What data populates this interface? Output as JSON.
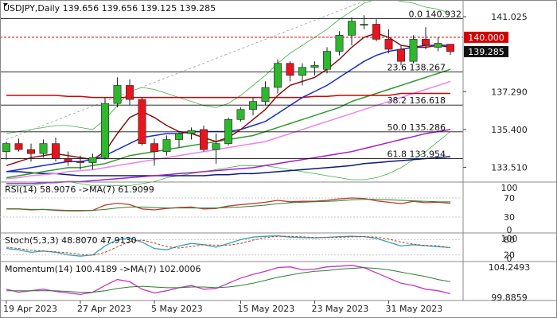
{
  "chart_data": {
    "type": "candlestick",
    "symbol": "USDJPY",
    "timeframe": "Daily",
    "header_ohlc": [
      "139.656",
      "139.656",
      "139.125",
      "139.285"
    ],
    "price_ticks": [
      "141.025",
      "137.290",
      "135.400",
      "133.510"
    ],
    "current_price": "139.285",
    "fib_levels": [
      {
        "label": "0.0 140.932",
        "value": 140.932
      },
      {
        "label": "23.6 138.267",
        "value": 138.267
      },
      {
        "label": "38.2 136.618",
        "value": 136.618
      },
      {
        "label": "50.0 135.286",
        "value": 135.286
      },
      {
        "label": "61.8 133.954",
        "value": 133.954
      }
    ],
    "resistance": {
      "label": "140.000",
      "value": 140.0
    },
    "date_labels": [
      "19 Apr 2023",
      "27 Apr 2023",
      "5 May 2023",
      "15 May 2023",
      "23 May 2023",
      "31 May 2023"
    ],
    "candles": [
      {
        "o": 134.3,
        "h": 134.8,
        "l": 133.9,
        "c": 134.7
      },
      {
        "o": 134.7,
        "h": 134.95,
        "l": 134.3,
        "c": 134.4
      },
      {
        "o": 134.4,
        "h": 134.7,
        "l": 133.8,
        "c": 134.2
      },
      {
        "o": 134.2,
        "h": 134.9,
        "l": 134.0,
        "c": 134.7
      },
      {
        "o": 134.7,
        "h": 135.0,
        "l": 133.8,
        "c": 133.95
      },
      {
        "o": 133.95,
        "h": 134.3,
        "l": 133.6,
        "c": 133.8
      },
      {
        "o": 133.8,
        "h": 134.1,
        "l": 133.4,
        "c": 133.75
      },
      {
        "o": 133.75,
        "h": 134.2,
        "l": 133.4,
        "c": 134.0
      },
      {
        "o": 134.0,
        "h": 137.0,
        "l": 133.9,
        "c": 136.7
      },
      {
        "o": 136.7,
        "h": 138.0,
        "l": 136.5,
        "c": 137.6
      },
      {
        "o": 137.6,
        "h": 137.9,
        "l": 136.6,
        "c": 136.9
      },
      {
        "o": 136.9,
        "h": 137.0,
        "l": 134.6,
        "c": 134.7
      },
      {
        "o": 134.7,
        "h": 134.95,
        "l": 133.6,
        "c": 134.3
      },
      {
        "o": 134.3,
        "h": 135.1,
        "l": 134.1,
        "c": 134.9
      },
      {
        "o": 134.9,
        "h": 135.3,
        "l": 134.5,
        "c": 135.2
      },
      {
        "o": 135.2,
        "h": 135.5,
        "l": 134.9,
        "c": 135.35
      },
      {
        "o": 135.4,
        "h": 135.6,
        "l": 134.3,
        "c": 134.4
      },
      {
        "o": 134.4,
        "h": 135.2,
        "l": 133.7,
        "c": 134.7
      },
      {
        "o": 134.7,
        "h": 136.0,
        "l": 134.6,
        "c": 135.9
      },
      {
        "o": 135.9,
        "h": 136.5,
        "l": 135.8,
        "c": 136.4
      },
      {
        "o": 136.4,
        "h": 137.0,
        "l": 136.1,
        "c": 136.8
      },
      {
        "o": 136.8,
        "h": 137.8,
        "l": 136.6,
        "c": 137.5
      },
      {
        "o": 137.5,
        "h": 138.9,
        "l": 137.2,
        "c": 138.7
      },
      {
        "o": 138.7,
        "h": 138.8,
        "l": 137.8,
        "c": 138.1
      },
      {
        "o": 138.1,
        "h": 138.7,
        "l": 137.6,
        "c": 138.5
      },
      {
        "o": 138.5,
        "h": 138.8,
        "l": 138.1,
        "c": 138.6
      },
      {
        "o": 138.4,
        "h": 139.5,
        "l": 138.2,
        "c": 139.3
      },
      {
        "o": 139.3,
        "h": 140.3,
        "l": 139.1,
        "c": 140.1
      },
      {
        "o": 140.1,
        "h": 141.0,
        "l": 139.6,
        "c": 140.8
      },
      {
        "o": 140.6,
        "h": 141.1,
        "l": 140.4,
        "c": 140.65
      },
      {
        "o": 140.65,
        "h": 140.9,
        "l": 139.8,
        "c": 139.9
      },
      {
        "o": 139.9,
        "h": 140.4,
        "l": 139.2,
        "c": 139.4
      },
      {
        "o": 139.4,
        "h": 139.6,
        "l": 138.6,
        "c": 138.8
      },
      {
        "o": 138.8,
        "h": 140.1,
        "l": 138.7,
        "c": 139.9
      },
      {
        "o": 139.9,
        "h": 140.5,
        "l": 139.4,
        "c": 139.6
      },
      {
        "o": 139.5,
        "h": 140.0,
        "l": 139.3,
        "c": 139.7
      },
      {
        "o": 139.656,
        "h": 139.656,
        "l": 139.125,
        "c": 139.285
      }
    ],
    "ylim": [
      132.9,
      141.7
    ],
    "ma_fast": [
      133.6,
      133.8,
      134.0,
      134.1,
      134.2,
      134.1,
      134.0,
      133.9,
      134.3,
      135.2,
      136.0,
      136.3,
      136.0,
      135.6,
      135.3,
      135.2,
      135.0,
      134.8,
      135.0,
      135.4,
      135.9,
      136.4,
      137.1,
      137.6,
      137.8,
      138.0,
      138.4,
      138.9,
      139.5,
      140.0,
      140.2,
      140.0,
      139.6,
      139.5,
      139.5,
      139.6,
      139.5
    ],
    "ma_mid": [
      133.3,
      133.4,
      133.5,
      133.6,
      133.7,
      133.8,
      133.8,
      133.9,
      134.1,
      134.4,
      134.7,
      135.0,
      135.1,
      135.2,
      135.2,
      135.3,
      135.3,
      135.3,
      135.3,
      135.4,
      135.6,
      135.8,
      136.2,
      136.6,
      137.0,
      137.3,
      137.6,
      138.0,
      138.4,
      138.8,
      139.1,
      139.3,
      139.4,
      139.5,
      139.6,
      139.6,
      139.6
    ],
    "ma_green": [
      133.0,
      133.1,
      133.2,
      133.3,
      133.4,
      133.5,
      133.5,
      133.6,
      133.7,
      133.9,
      134.1,
      134.2,
      134.3,
      134.4,
      134.5,
      134.6,
      134.7,
      134.8,
      134.9,
      135.0,
      135.1,
      135.3,
      135.5,
      135.7,
      135.9,
      136.1,
      136.3,
      136.5,
      136.8,
      137.0,
      137.2,
      137.4,
      137.6,
      137.8,
      138.0,
      138.2,
      138.4
    ],
    "ma_pink": [
      132.95,
      133.0,
      133.1,
      133.15,
      133.2,
      133.3,
      133.35,
      133.4,
      133.5,
      133.6,
      133.7,
      133.8,
      133.9,
      134.0,
      134.1,
      134.2,
      134.3,
      134.4,
      134.5,
      134.6,
      134.7,
      134.8,
      135.0,
      135.2,
      135.4,
      135.6,
      135.8,
      136.0,
      136.2,
      136.4,
      136.6,
      136.8,
      137.0,
      137.2,
      137.4,
      137.6,
      137.8
    ],
    "ma_red": [
      137.1,
      137.1,
      137.1,
      137.1,
      137.1,
      137.05,
      137.05,
      137.0,
      137.0,
      137.0,
      137.0,
      137.0,
      137.0,
      137.0,
      137.0,
      137.0,
      137.0,
      137.0,
      137.0,
      137.0,
      137.0,
      137.0,
      137.0,
      137.0,
      137.0,
      137.05,
      137.05,
      137.1,
      137.1,
      137.1,
      137.1,
      137.1,
      137.2,
      137.2,
      137.2,
      137.2,
      137.2
    ],
    "ma_purple": [
      132.7,
      132.7,
      132.7,
      132.75,
      132.75,
      132.8,
      132.8,
      132.85,
      132.9,
      132.95,
      133.0,
      133.05,
      133.1,
      133.15,
      133.2,
      133.25,
      133.3,
      133.35,
      133.4,
      133.45,
      133.5,
      133.6,
      133.7,
      133.8,
      133.9,
      134.0,
      134.1,
      134.2,
      134.3,
      134.45,
      134.6,
      134.75,
      134.9,
      135.05,
      135.2,
      135.3,
      135.4
    ],
    "ma_navy": [
      133.3,
      133.3,
      133.25,
      133.2,
      133.2,
      133.15,
      133.1,
      133.1,
      133.1,
      133.1,
      133.1,
      133.1,
      133.1,
      133.1,
      133.1,
      133.1,
      133.1,
      133.15,
      133.15,
      133.2,
      133.2,
      133.25,
      133.3,
      133.35,
      133.4,
      133.45,
      133.5,
      133.55,
      133.6,
      133.7,
      133.75,
      133.8,
      133.85,
      133.9,
      133.95,
      134.0,
      134.05
    ],
    "bb_upper": [
      135.2,
      135.3,
      135.4,
      135.5,
      135.6,
      135.6,
      135.5,
      135.4,
      135.9,
      136.6,
      137.3,
      137.5,
      137.4,
      137.2,
      137.0,
      136.8,
      136.6,
      136.5,
      136.7,
      137.1,
      137.6,
      138.1,
      138.7,
      139.2,
      139.6,
      140.0,
      140.4,
      140.9,
      141.3,
      141.7,
      141.9,
      141.9,
      141.8,
      141.7,
      141.5,
      141.4,
      141.2
    ],
    "bb_lower": [
      132.6,
      132.6,
      132.6,
      132.7,
      132.8,
      132.8,
      132.7,
      132.6,
      132.6,
      132.6,
      132.6,
      132.7,
      132.8,
      133.0,
      133.1,
      133.2,
      133.3,
      133.4,
      133.5,
      133.6,
      133.6,
      133.6,
      133.5,
      133.4,
      133.3,
      133.2,
      133.1,
      133.0,
      132.9,
      132.9,
      133.0,
      133.2,
      133.5,
      133.9,
      134.3,
      134.8,
      135.3
    ],
    "panels": [
      {
        "title": "RSI(14) 58.9076  ->MA(7) 61.9099",
        "ticks": [
          "100",
          "70",
          "30",
          "0"
        ],
        "main": [
          47,
          47,
          45,
          46,
          44,
          43,
          43,
          44,
          55,
          59,
          56,
          47,
          45,
          48,
          50,
          51,
          47,
          48,
          53,
          56,
          58,
          61,
          65,
          62,
          63,
          63,
          65,
          68,
          70,
          69,
          64,
          61,
          58,
          63,
          60,
          61,
          58.9
        ],
        "signal": [
          47,
          47,
          46,
          46,
          45,
          44,
          44,
          44,
          46,
          49,
          51,
          51,
          50,
          49,
          49,
          49,
          49,
          49,
          50,
          51,
          53,
          55,
          58,
          60,
          61,
          62,
          63,
          64,
          66,
          67,
          67,
          66,
          65,
          64,
          63,
          62,
          61.9
        ]
      },
      {
        "title": "Stoch(5,3,3) 48.8070 47.9130",
        "ticks": [
          "80",
          "100",
          "20",
          "0"
        ],
        "main": [
          45,
          40,
          30,
          35,
          30,
          20,
          15,
          20,
          55,
          80,
          85,
          70,
          45,
          40,
          55,
          65,
          60,
          50,
          65,
          80,
          90,
          93,
          95,
          90,
          88,
          87,
          89,
          92,
          93,
          92,
          85,
          70,
          55,
          60,
          56,
          52,
          48.8
        ],
        "signal": [
          50,
          45,
          38,
          35,
          32,
          28,
          22,
          18,
          30,
          52,
          73,
          78,
          67,
          52,
          47,
          53,
          60,
          58,
          58,
          65,
          78,
          88,
          93,
          93,
          91,
          88,
          88,
          89,
          91,
          92,
          90,
          82,
          70,
          62,
          57,
          56,
          47.9
        ]
      },
      {
        "title": "Momentum(14) 100.4189  ->MA(7) 102.0006",
        "ticks": [
          "104.2493",
          "99.8859"
        ],
        "main": [
          101,
          100.6,
          100.8,
          101.0,
          100.7,
          100.5,
          100.3,
          100.6,
          101.5,
          102.3,
          102.0,
          101.0,
          100.5,
          100.8,
          101.2,
          101.5,
          101.0,
          101.1,
          101.8,
          102.5,
          103.0,
          103.4,
          103.9,
          104.0,
          103.6,
          103.7,
          104.0,
          104.1,
          104.2,
          103.9,
          103.2,
          102.5,
          101.8,
          101.5,
          101.0,
          100.8,
          100.4
        ],
        "signal": [
          100.8,
          100.8,
          100.8,
          100.8,
          100.8,
          100.7,
          100.6,
          100.6,
          100.8,
          101.1,
          101.3,
          101.4,
          101.3,
          101.2,
          101.2,
          101.3,
          101.3,
          101.2,
          101.3,
          101.5,
          101.8,
          102.2,
          102.6,
          102.9,
          103.2,
          103.4,
          103.5,
          103.7,
          103.8,
          103.9,
          103.8,
          103.6,
          103.3,
          103.0,
          102.7,
          102.3,
          102.0
        ]
      }
    ],
    "colors": {
      "up": "#2db82d",
      "down": "#e8141e",
      "ma_fast": "#8b0f0f",
      "ma_mid": "#1a2ccc",
      "ma_green": "#2e9a2e",
      "ma_pink": "#ee82ee",
      "ma_red": "#d40000",
      "ma_purple": "#a020c8",
      "ma_navy": "#0a1a7a",
      "bb": "#3cb043",
      "fib": "#111111",
      "resistance": "#d40000",
      "grid": "#c8c8c8",
      "osc_main": "#2ea6b8",
      "osc_signal": "#c0392b",
      "rsi_main": "#c0392b",
      "rsi_signal": "#2e7d32",
      "mom_main": "#c633c6",
      "mom_signal": "#2e7d32",
      "price_box": "#111111",
      "res_box": "#d40000"
    }
  }
}
